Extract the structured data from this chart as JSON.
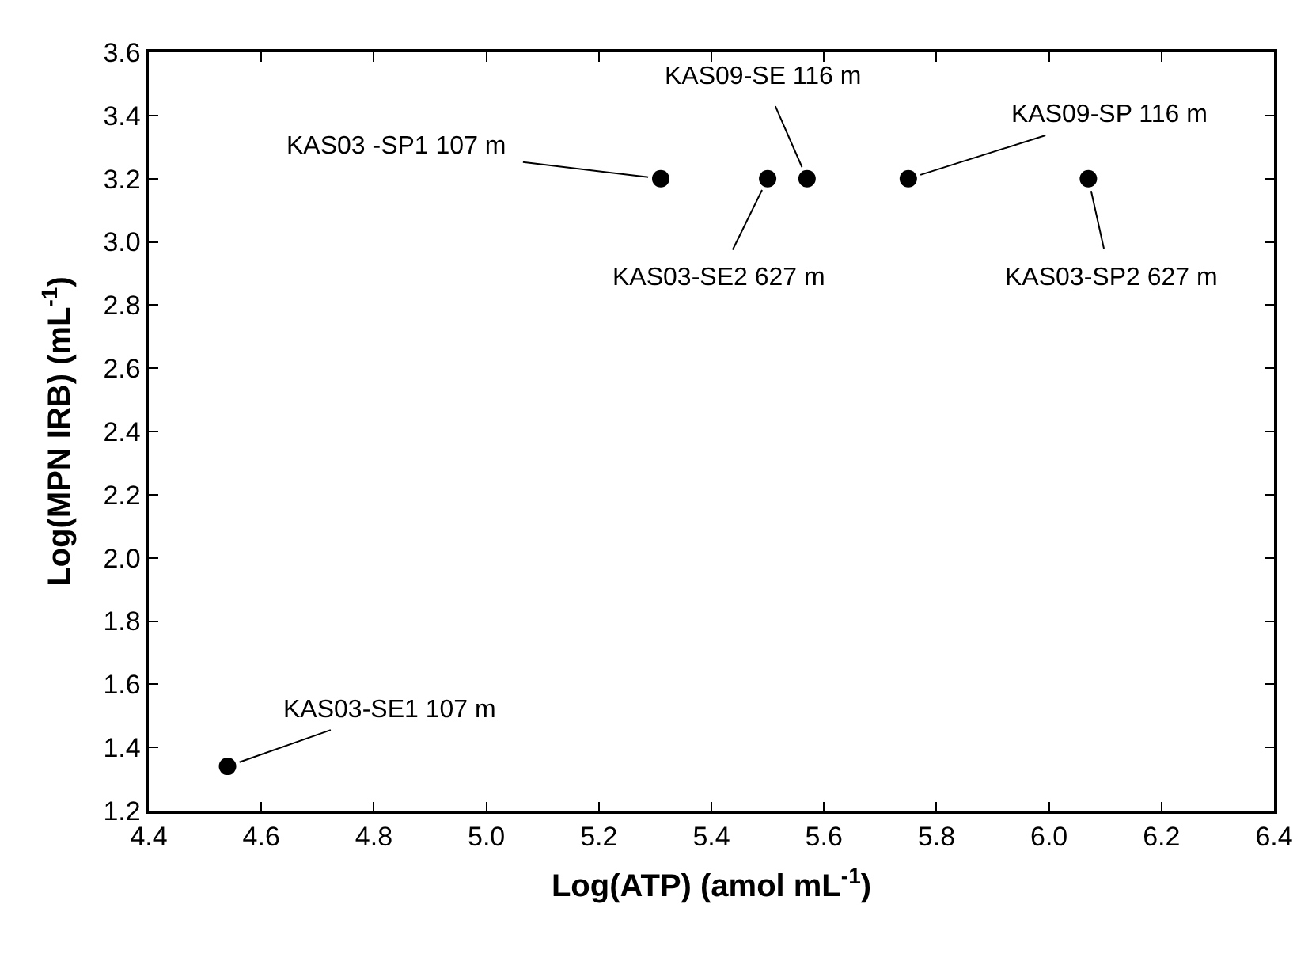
{
  "chart_data": {
    "type": "scatter",
    "xlabel": "Log(ATP) (amol mL$^{-1}$)",
    "ylabel": "Log(MPN IRB) (mL$^{-1}$)",
    "x": [
      4.54,
      5.31,
      5.5,
      5.57,
      5.75,
      6.07
    ],
    "series": [
      {
        "color": "#000000",
        "values": [
          1.34,
          3.2,
          3.2,
          3.2,
          3.2,
          3.2
        ]
      }
    ],
    "marker": "circle",
    "xlim": [
      4.4,
      6.4
    ],
    "xticks": [
      4.4,
      4.6,
      4.8,
      {
        "value": 5,
        "label": "5.0"
      },
      5.2,
      5.4,
      5.6,
      5.8,
      {
        "value": 6,
        "label": "6.0"
      },
      6.2,
      6.4
    ],
    "ylim": [
      1.2,
      3.6
    ],
    "yticks": [
      1.2,
      1.4,
      1.6,
      1.8,
      {
        "value": 2,
        "label": "2.0"
      },
      2.2,
      2.4,
      2.6,
      2.8,
      {
        "value": 3,
        "label": "3.0"
      },
      3.2,
      3.4,
      3.6
    ],
    "annotations": [
      {
        "text": "KAS03-SE1 107 m",
        "x": 4.54,
        "y": 1.34
      },
      {
        "text": "KAS03 -SP1 107 m",
        "x": 5.31,
        "y": 3.2
      },
      {
        "text": "KAS03-SE2 627 m",
        "x": 5.5,
        "y": 3.2
      },
      {
        "text": "KAS09-SE 116 m",
        "x": 5.57,
        "y": 3.2
      },
      {
        "text": "KAS09-SP 116 m",
        "x": 5.75,
        "y": 3.2
      },
      {
        "text": "KAS03-SP2 627 m",
        "x": 6.07,
        "y": 3.2
      }
    ]
  }
}
